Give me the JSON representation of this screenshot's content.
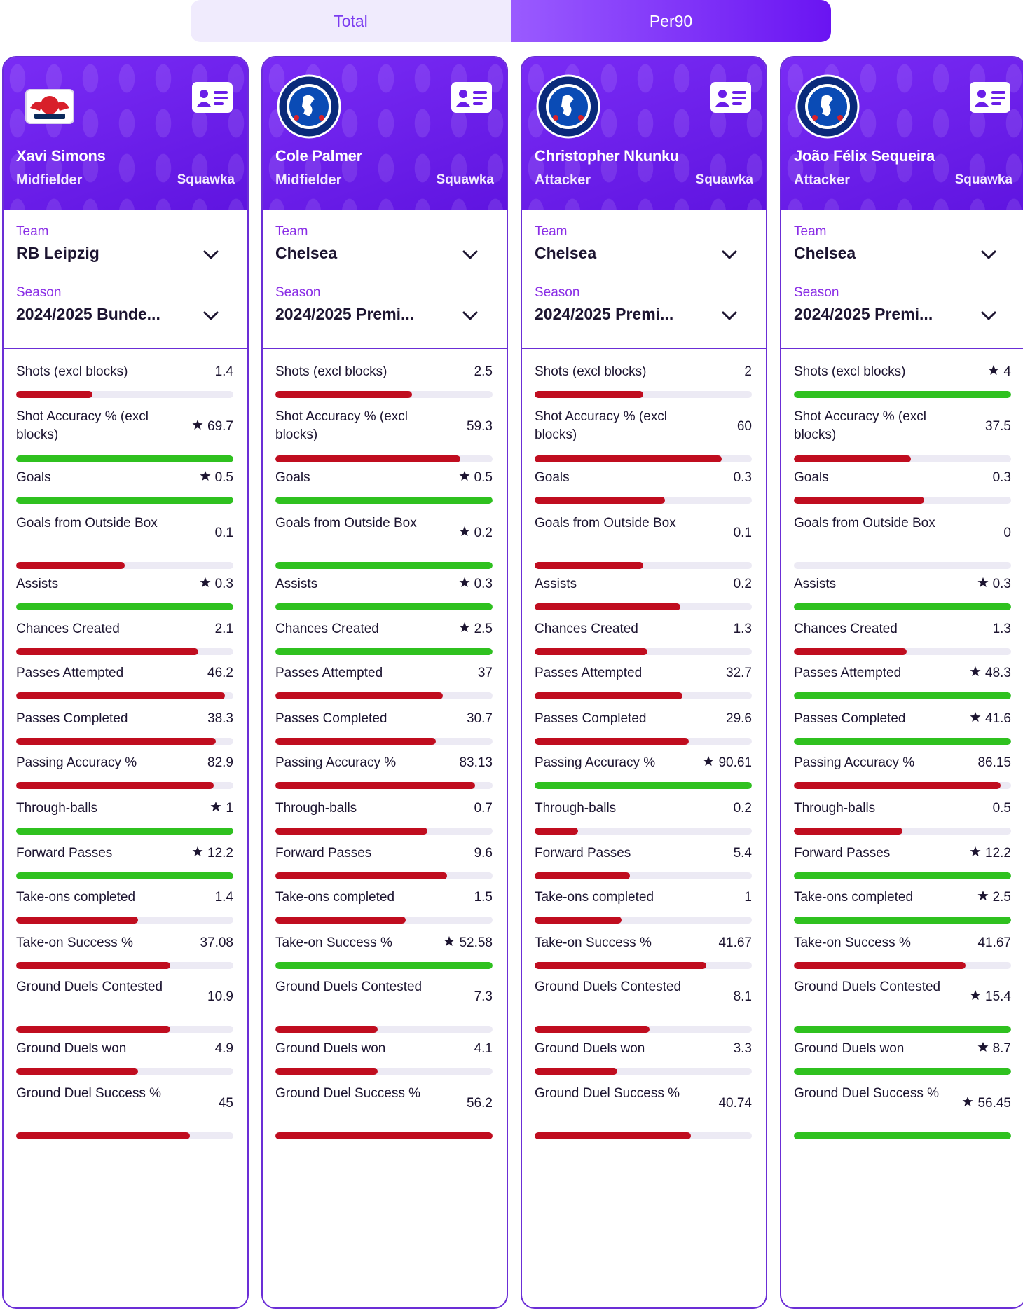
{
  "toggle": {
    "options": [
      "Total",
      "Per90"
    ],
    "selected": "Per90"
  },
  "colors": {
    "accent": "#6a1ee8",
    "good_bar": "#2fc11f",
    "bad_bar": "#c00d1f",
    "track": "#eceaf4"
  },
  "labels": {
    "team": "Team",
    "season": "Season"
  },
  "players": [
    {
      "name": "Xavi Simons",
      "position": "Midfielder",
      "source": "Squawka",
      "badge": "rb-leipzig-badge-icon",
      "team": "RB Leipzig",
      "season": "2024/2025 Bunde...",
      "stats": [
        {
          "label": "Shots (excl blocks)",
          "value": "1.4",
          "star": false,
          "fill": 0.35,
          "best": false
        },
        {
          "label": "Shot Accuracy % (excl blocks)",
          "value": "69.7",
          "star": true,
          "fill": 1.0,
          "best": true
        },
        {
          "label": "Goals",
          "value": "0.5",
          "star": true,
          "fill": 1.0,
          "best": true
        },
        {
          "label": "Goals from Outside Box",
          "value": "0.1",
          "star": false,
          "fill": 0.5,
          "best": false
        },
        {
          "label": "Assists",
          "value": "0.3",
          "star": true,
          "fill": 1.0,
          "best": true
        },
        {
          "label": "Chances Created",
          "value": "2.1",
          "star": false,
          "fill": 0.84,
          "best": false
        },
        {
          "label": "Passes Attempted",
          "value": "46.2",
          "star": false,
          "fill": 0.96,
          "best": false
        },
        {
          "label": "Passes Completed",
          "value": "38.3",
          "star": false,
          "fill": 0.92,
          "best": false
        },
        {
          "label": "Passing Accuracy %",
          "value": "82.9",
          "star": false,
          "fill": 0.91,
          "best": false
        },
        {
          "label": "Through-balls",
          "value": "1",
          "star": true,
          "fill": 1.0,
          "best": true
        },
        {
          "label": "Forward Passes",
          "value": "12.2",
          "star": true,
          "fill": 1.0,
          "best": true
        },
        {
          "label": "Take-ons completed",
          "value": "1.4",
          "star": false,
          "fill": 0.56,
          "best": false
        },
        {
          "label": "Take-on Success %",
          "value": "37.08",
          "star": false,
          "fill": 0.71,
          "best": false
        },
        {
          "label": "Ground Duels Contested",
          "value": "10.9",
          "star": false,
          "fill": 0.71,
          "best": false
        },
        {
          "label": "Ground Duels won",
          "value": "4.9",
          "star": false,
          "fill": 0.56,
          "best": false
        },
        {
          "label": "Ground Duel Success %",
          "value": "45",
          "star": false,
          "fill": 0.8,
          "best": false
        }
      ]
    },
    {
      "name": "Cole Palmer",
      "position": "Midfielder",
      "source": "Squawka",
      "badge": "chelsea-badge-icon",
      "team": "Chelsea",
      "season": "2024/2025 Premi...",
      "stats": [
        {
          "label": "Shots (excl blocks)",
          "value": "2.5",
          "star": false,
          "fill": 0.63,
          "best": false
        },
        {
          "label": "Shot Accuracy % (excl blocks)",
          "value": "59.3",
          "star": false,
          "fill": 0.85,
          "best": false
        },
        {
          "label": "Goals",
          "value": "0.5",
          "star": true,
          "fill": 1.0,
          "best": true
        },
        {
          "label": "Goals from Outside Box",
          "value": "0.2",
          "star": true,
          "fill": 1.0,
          "best": true
        },
        {
          "label": "Assists",
          "value": "0.3",
          "star": true,
          "fill": 1.0,
          "best": true
        },
        {
          "label": "Chances Created",
          "value": "2.5",
          "star": true,
          "fill": 1.0,
          "best": true
        },
        {
          "label": "Passes Attempted",
          "value": "37",
          "star": false,
          "fill": 0.77,
          "best": false
        },
        {
          "label": "Passes Completed",
          "value": "30.7",
          "star": false,
          "fill": 0.74,
          "best": false
        },
        {
          "label": "Passing Accuracy %",
          "value": "83.13",
          "star": false,
          "fill": 0.92,
          "best": false
        },
        {
          "label": "Through-balls",
          "value": "0.7",
          "star": false,
          "fill": 0.7,
          "best": false
        },
        {
          "label": "Forward Passes",
          "value": "9.6",
          "star": false,
          "fill": 0.79,
          "best": false
        },
        {
          "label": "Take-ons completed",
          "value": "1.5",
          "star": false,
          "fill": 0.6,
          "best": false
        },
        {
          "label": "Take-on Success %",
          "value": "52.58",
          "star": true,
          "fill": 1.0,
          "best": true
        },
        {
          "label": "Ground Duels Contested",
          "value": "7.3",
          "star": false,
          "fill": 0.47,
          "best": false
        },
        {
          "label": "Ground Duels won",
          "value": "4.1",
          "star": false,
          "fill": 0.47,
          "best": false
        },
        {
          "label": "Ground Duel Success %",
          "value": "56.2",
          "star": false,
          "fill": 1.0,
          "best": false
        }
      ]
    },
    {
      "name": "Christopher Nkunku",
      "position": "Attacker",
      "source": "Squawka",
      "badge": "chelsea-badge-icon",
      "team": "Chelsea",
      "season": "2024/2025 Premi...",
      "stats": [
        {
          "label": "Shots (excl blocks)",
          "value": "2",
          "star": false,
          "fill": 0.5,
          "best": false
        },
        {
          "label": "Shot Accuracy % (excl blocks)",
          "value": "60",
          "star": false,
          "fill": 0.86,
          "best": false
        },
        {
          "label": "Goals",
          "value": "0.3",
          "star": false,
          "fill": 0.6,
          "best": false
        },
        {
          "label": "Goals from Outside Box",
          "value": "0.1",
          "star": false,
          "fill": 0.5,
          "best": false
        },
        {
          "label": "Assists",
          "value": "0.2",
          "star": false,
          "fill": 0.67,
          "best": false
        },
        {
          "label": "Chances Created",
          "value": "1.3",
          "star": false,
          "fill": 0.52,
          "best": false
        },
        {
          "label": "Passes Attempted",
          "value": "32.7",
          "star": false,
          "fill": 0.68,
          "best": false
        },
        {
          "label": "Passes Completed",
          "value": "29.6",
          "star": false,
          "fill": 0.71,
          "best": false
        },
        {
          "label": "Passing Accuracy %",
          "value": "90.61",
          "star": true,
          "fill": 1.0,
          "best": true
        },
        {
          "label": "Through-balls",
          "value": "0.2",
          "star": false,
          "fill": 0.2,
          "best": false
        },
        {
          "label": "Forward Passes",
          "value": "5.4",
          "star": false,
          "fill": 0.44,
          "best": false
        },
        {
          "label": "Take-ons completed",
          "value": "1",
          "star": false,
          "fill": 0.4,
          "best": false
        },
        {
          "label": "Take-on Success %",
          "value": "41.67",
          "star": false,
          "fill": 0.79,
          "best": false
        },
        {
          "label": "Ground Duels Contested",
          "value": "8.1",
          "star": false,
          "fill": 0.53,
          "best": false
        },
        {
          "label": "Ground Duels won",
          "value": "3.3",
          "star": false,
          "fill": 0.38,
          "best": false
        },
        {
          "label": "Ground Duel Success %",
          "value": "40.74",
          "star": false,
          "fill": 0.72,
          "best": false
        }
      ]
    },
    {
      "name": "João Félix Sequeira",
      "position": "Attacker",
      "source": "Squawka",
      "badge": "chelsea-badge-icon",
      "team": "Chelsea",
      "season": "2024/2025 Premi...",
      "stats": [
        {
          "label": "Shots (excl blocks)",
          "value": "4",
          "star": true,
          "fill": 1.0,
          "best": true
        },
        {
          "label": "Shot Accuracy % (excl blocks)",
          "value": "37.5",
          "star": false,
          "fill": 0.54,
          "best": false
        },
        {
          "label": "Goals",
          "value": "0.3",
          "star": false,
          "fill": 0.6,
          "best": false
        },
        {
          "label": "Goals from Outside Box",
          "value": "0",
          "star": false,
          "fill": 0,
          "best": false
        },
        {
          "label": "Assists",
          "value": "0.3",
          "star": true,
          "fill": 1.0,
          "best": true
        },
        {
          "label": "Chances Created",
          "value": "1.3",
          "star": false,
          "fill": 0.52,
          "best": false
        },
        {
          "label": "Passes Attempted",
          "value": "48.3",
          "star": true,
          "fill": 1.0,
          "best": true
        },
        {
          "label": "Passes Completed",
          "value": "41.6",
          "star": true,
          "fill": 1.0,
          "best": true
        },
        {
          "label": "Passing Accuracy %",
          "value": "86.15",
          "star": false,
          "fill": 0.95,
          "best": false
        },
        {
          "label": "Through-balls",
          "value": "0.5",
          "star": false,
          "fill": 0.5,
          "best": false
        },
        {
          "label": "Forward Passes",
          "value": "12.2",
          "star": true,
          "fill": 1.0,
          "best": true
        },
        {
          "label": "Take-ons completed",
          "value": "2.5",
          "star": true,
          "fill": 1.0,
          "best": true
        },
        {
          "label": "Take-on Success %",
          "value": "41.67",
          "star": false,
          "fill": 0.79,
          "best": false
        },
        {
          "label": "Ground Duels Contested",
          "value": "15.4",
          "star": true,
          "fill": 1.0,
          "best": true
        },
        {
          "label": "Ground Duels won",
          "value": "8.7",
          "star": true,
          "fill": 1.0,
          "best": true
        },
        {
          "label": "Ground Duel Success %",
          "value": "56.45",
          "star": true,
          "fill": 1.0,
          "best": true
        }
      ]
    }
  ]
}
